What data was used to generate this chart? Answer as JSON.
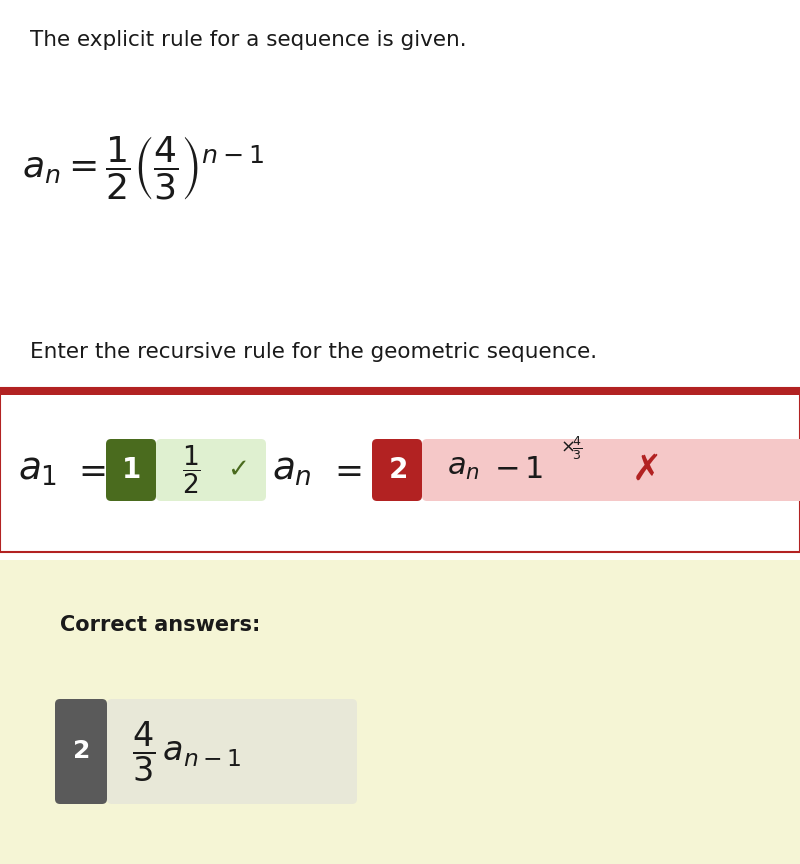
{
  "bg_color": "#ffffff",
  "text_color": "#1a1a1a",
  "line1": "The explicit rule for a sequence is given.",
  "line2": "Enter the recursive rule for the geometric sequence.",
  "correct_answers_label": "Correct answers:",
  "box_border_color": "#b22222",
  "green_dark": "#4a6b1e",
  "green_light": "#dff0d0",
  "red_dark": "#b22222",
  "red_light": "#f5c8c8",
  "gray_dark": "#5a5a5a",
  "correct_bg": "#f5f5d5",
  "correct_inner_bg": "#dcdcb8",
  "answer_inner_bg": "#e8e8d8",
  "fig_width": 8.0,
  "fig_height": 8.64,
  "dpi": 100
}
